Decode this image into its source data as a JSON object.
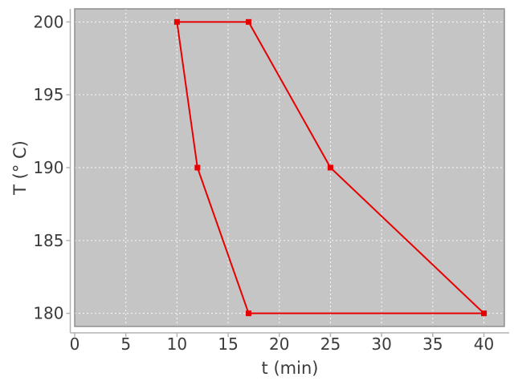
{
  "chart_data": {
    "type": "line",
    "title": "",
    "xlabel": "t (min)",
    "ylabel": "T (° C)",
    "xlim": [
      0,
      42
    ],
    "ylim": [
      179.1,
      200.9
    ],
    "xticks": [
      0,
      5,
      10,
      15,
      20,
      25,
      30,
      35,
      40
    ],
    "yticks": [
      180,
      185,
      190,
      195,
      200
    ],
    "grid": true,
    "grid_style": "dashed",
    "legend_position": "none",
    "series": [
      {
        "marker": "square",
        "closed": true,
        "color": "#e60000",
        "points": [
          [
            10,
            200
          ],
          [
            17,
            200
          ],
          [
            25,
            190
          ],
          [
            40,
            180
          ],
          [
            17,
            180
          ],
          [
            12,
            190
          ]
        ]
      }
    ],
    "colors": {
      "figure_bg": "#ffffff",
      "plot_bg": "#c5c5c5",
      "grid": "#fafafa",
      "spine": "#8f8f8f",
      "axis": "#b3b3b3",
      "text": "#3c3c3c",
      "line": "#e60000"
    }
  }
}
